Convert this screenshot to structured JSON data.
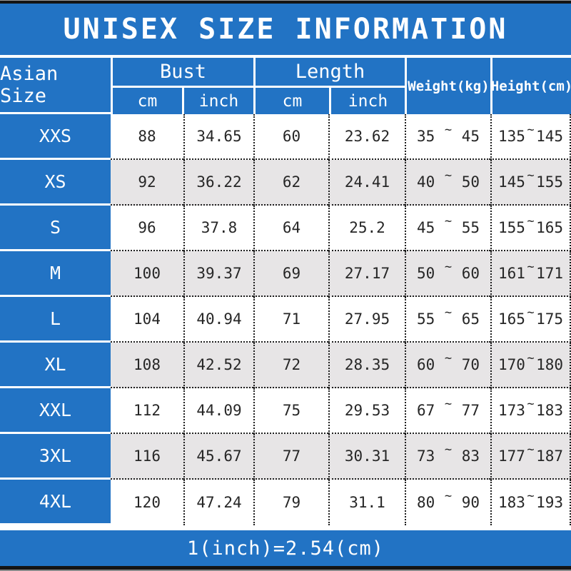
{
  "title": "UNISEX SIZE INFORMATION",
  "footer": "1(inch)=2.54(cm)",
  "colors": {
    "blue": "#2273c4",
    "alt_row": "#e7e5e6",
    "text_dark": "#262626",
    "white": "#ffffff",
    "bar_black": "#141414"
  },
  "table": {
    "size_header": "Asian Size",
    "tilde": "~",
    "groups": [
      {
        "label": "Bust",
        "subs": [
          "cm",
          "inch"
        ]
      },
      {
        "label": "Length",
        "subs": [
          "cm",
          "inch"
        ]
      }
    ],
    "weight_header": "Weight(kg)",
    "height_header": "Height(cm)",
    "rows": [
      {
        "size": "XXS",
        "bust_cm": "88",
        "bust_in": "34.65",
        "len_cm": "60",
        "len_in": "23.62",
        "w_lo": "35",
        "w_hi": "45",
        "h_lo": "135",
        "h_hi": "145"
      },
      {
        "size": "XS",
        "bust_cm": "92",
        "bust_in": "36.22",
        "len_cm": "62",
        "len_in": "24.41",
        "w_lo": "40",
        "w_hi": "50",
        "h_lo": "145",
        "h_hi": "155"
      },
      {
        "size": "S",
        "bust_cm": "96",
        "bust_in": "37.8",
        "len_cm": "64",
        "len_in": "25.2",
        "w_lo": "45",
        "w_hi": "55",
        "h_lo": "155",
        "h_hi": "165"
      },
      {
        "size": "M",
        "bust_cm": "100",
        "bust_in": "39.37",
        "len_cm": "69",
        "len_in": "27.17",
        "w_lo": "50",
        "w_hi": "60",
        "h_lo": "161",
        "h_hi": "171"
      },
      {
        "size": "L",
        "bust_cm": "104",
        "bust_in": "40.94",
        "len_cm": "71",
        "len_in": "27.95",
        "w_lo": "55",
        "w_hi": "65",
        "h_lo": "165",
        "h_hi": "175"
      },
      {
        "size": "XL",
        "bust_cm": "108",
        "bust_in": "42.52",
        "len_cm": "72",
        "len_in": "28.35",
        "w_lo": "60",
        "w_hi": "70",
        "h_lo": "170",
        "h_hi": "180"
      },
      {
        "size": "XXL",
        "bust_cm": "112",
        "bust_in": "44.09",
        "len_cm": "75",
        "len_in": "29.53",
        "w_lo": "67",
        "w_hi": "77",
        "h_lo": "173",
        "h_hi": "183"
      },
      {
        "size": "3XL",
        "bust_cm": "116",
        "bust_in": "45.67",
        "len_cm": "77",
        "len_in": "30.31",
        "w_lo": "73",
        "w_hi": "83",
        "h_lo": "177",
        "h_hi": "187"
      },
      {
        "size": "4XL",
        "bust_cm": "120",
        "bust_in": "47.24",
        "len_cm": "79",
        "len_in": "31.1",
        "w_lo": "80",
        "w_hi": "90",
        "h_lo": "183",
        "h_hi": "193"
      }
    ]
  }
}
